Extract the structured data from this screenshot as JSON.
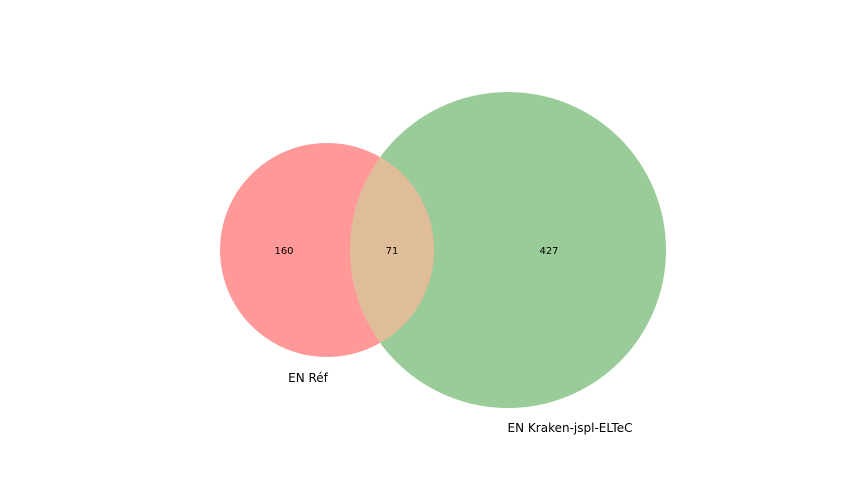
{
  "chart_data": {
    "type": "venn",
    "sets": [
      {
        "label": "EN Réf",
        "only_count": "160",
        "color": "#ff9999"
      },
      {
        "label": "EN Kraken-jspl-ELTeC",
        "only_count": "427",
        "color": "#99cc99"
      }
    ],
    "intersection": {
      "count": "71",
      "color": "#e0bd99"
    }
  }
}
